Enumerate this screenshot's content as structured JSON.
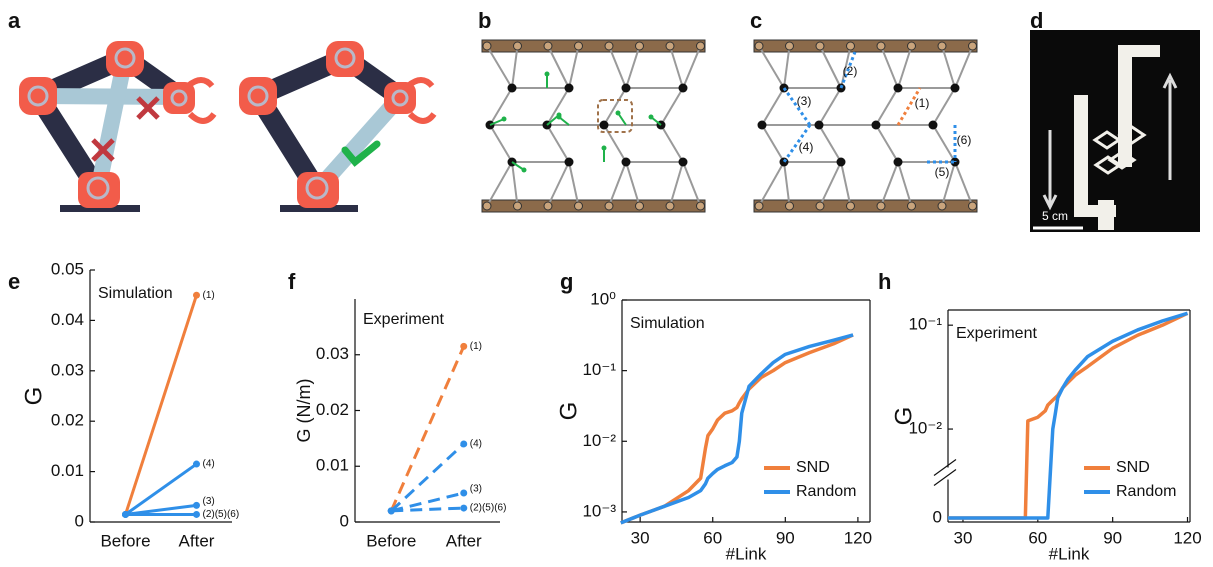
{
  "panel_labels": [
    "a",
    "b",
    "c",
    "d",
    "e",
    "f",
    "g",
    "h"
  ],
  "panel_c": {
    "link_labels": [
      "(1)",
      "(2)",
      "(3)",
      "(4)",
      "(5)",
      "(6)"
    ]
  },
  "panel_d": {
    "scale_bar": "5 cm"
  },
  "chart_data": [
    {
      "type": "line",
      "ylabel": "G",
      "annotation": "Simulation",
      "categories": [
        "Before",
        "After"
      ],
      "ylim": [
        0,
        0.05
      ],
      "yticks": [
        0,
        0.01,
        0.02,
        0.03,
        0.04,
        0.05
      ],
      "markers": true,
      "end_labels": true,
      "line_style": "solid",
      "series": [
        {
          "name": "(1)",
          "color": "#f07f3c",
          "values": [
            0.0015,
            0.045
          ]
        },
        {
          "name": "(4)",
          "color": "#2f8fe8",
          "values": [
            0.0015,
            0.0115
          ]
        },
        {
          "name": "(3)",
          "color": "#2f8fe8",
          "values": [
            0.0015,
            0.0033
          ]
        },
        {
          "name": "(2)(5)(6)",
          "color": "#2f8fe8",
          "values": [
            0.0015,
            0.0015
          ]
        }
      ]
    },
    {
      "type": "line",
      "ylabel": "G (N/m)",
      "annotation": "Experiment",
      "categories": [
        "Before",
        "After"
      ],
      "ylim": [
        0,
        0.04
      ],
      "yticks": [
        0,
        0.01,
        0.02,
        0.03
      ],
      "markers": true,
      "end_labels": true,
      "line_style": "dashed",
      "series": [
        {
          "name": "(1)",
          "color": "#f07f3c",
          "values": [
            0.002,
            0.0315
          ]
        },
        {
          "name": "(4)",
          "color": "#2f8fe8",
          "values": [
            0.002,
            0.014
          ]
        },
        {
          "name": "(3)",
          "color": "#2f8fe8",
          "values": [
            0.002,
            0.0052
          ]
        },
        {
          "name": "(2)(5)(6)",
          "color": "#2f8fe8",
          "values": [
            0.002,
            0.0025
          ]
        }
      ]
    },
    {
      "type": "line",
      "ylabel": "G",
      "xlabel": "#Link",
      "annotation": "Simulation",
      "log_scale": true,
      "legend": "lower right",
      "x": [
        22,
        30,
        40,
        50,
        55,
        57,
        58,
        60,
        62,
        65,
        68,
        70,
        71,
        72,
        75,
        80,
        85,
        90,
        100,
        110,
        118
      ],
      "xlim": [
        22.5,
        125
      ],
      "xticks": [
        30,
        60,
        90,
        120
      ],
      "ylim": [
        0.00072,
        1
      ],
      "yticks": [
        {
          "value": 0.001,
          "label": "10⁻³"
        },
        {
          "value": 0.01,
          "label": "10⁻²"
        },
        {
          "value": 0.1,
          "label": "10⁻¹"
        },
        {
          "value": 1,
          "label": "10⁰"
        }
      ],
      "series": [
        {
          "name": "SND",
          "color": "#f07f3c",
          "values": [
            0.0007,
            0.0009,
            0.0012,
            0.002,
            0.003,
            0.008,
            0.012,
            0.015,
            0.02,
            0.025,
            0.027,
            0.03,
            0.035,
            0.04,
            0.055,
            0.08,
            0.1,
            0.13,
            0.18,
            0.24,
            0.32
          ]
        },
        {
          "name": "Random",
          "color": "#2f8fe8",
          "values": [
            0.0007,
            0.0009,
            0.0012,
            0.0016,
            0.002,
            0.0025,
            0.003,
            0.0035,
            0.004,
            0.0045,
            0.005,
            0.006,
            0.01,
            0.025,
            0.06,
            0.09,
            0.13,
            0.17,
            0.22,
            0.27,
            0.32
          ]
        }
      ]
    },
    {
      "type": "line",
      "ylabel": "G",
      "xlabel": "#Link",
      "annotation": "Experiment",
      "log_scale": true,
      "legend": "lower right",
      "x": [
        24,
        55,
        56,
        60,
        63,
        64,
        66,
        67,
        68,
        70,
        72,
        75,
        80,
        90,
        100,
        110,
        120
      ],
      "xlim": [
        24,
        121
      ],
      "xticks": [
        30,
        60,
        90,
        120
      ],
      "ylim": [
        0,
        0.14
      ],
      "yticks": [
        0,
        {
          "value": 0.01,
          "label": "10⁻²"
        },
        {
          "value": 0.1,
          "label": "10⁻¹"
        }
      ],
      "series": [
        {
          "name": "SND",
          "color": "#f07f3c",
          "values": [
            0,
            0,
            0.012,
            0.013,
            0.015,
            0.017,
            0.019,
            0.02,
            0.021,
            0.025,
            0.028,
            0.033,
            0.04,
            0.06,
            0.08,
            0.1,
            0.13
          ]
        },
        {
          "name": "Random",
          "color": "#2f8fe8",
          "values": [
            0,
            0,
            0,
            0,
            0,
            0,
            0.01,
            0.014,
            0.02,
            0.025,
            0.03,
            0.037,
            0.05,
            0.07,
            0.09,
            0.11,
            0.13
          ]
        }
      ]
    }
  ]
}
